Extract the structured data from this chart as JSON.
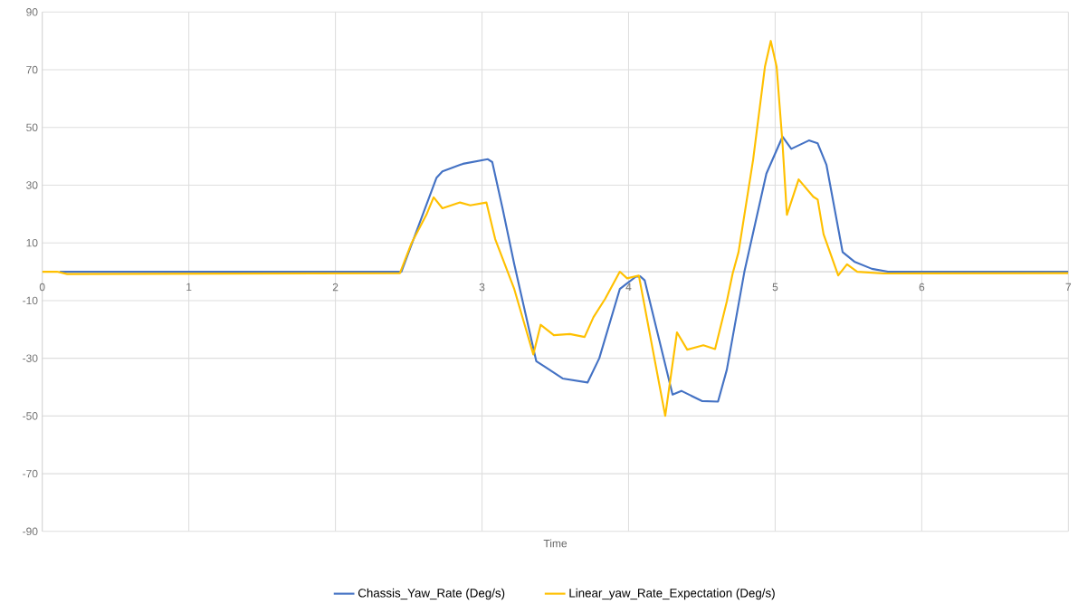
{
  "chart_data": {
    "type": "line",
    "xlabel": "Time",
    "xlim": [
      0,
      7
    ],
    "ylim": [
      -90,
      90
    ],
    "xticks": [
      0,
      1,
      2,
      3,
      4,
      5,
      6,
      7
    ],
    "yticks": [
      -90,
      -70,
      -50,
      -30,
      -10,
      10,
      30,
      50,
      70,
      90
    ],
    "grid": true,
    "legend": "bottom",
    "marker": "none",
    "line_style": "solid",
    "series": [
      {
        "name": "Chassis_Yaw_Rate (Deg/s)",
        "color": "#4472c4",
        "x": [
          0.12,
          2.45,
          2.69,
          2.73,
          2.87,
          3.04,
          3.07,
          3.14,
          3.22,
          3.37,
          3.43,
          3.55,
          3.72,
          3.8,
          3.94,
          3.99,
          4.05,
          4.08,
          4.11,
          4.3,
          4.36,
          4.5,
          4.61,
          4.67,
          4.79,
          4.94,
          5.05,
          5.11,
          5.23,
          5.29,
          5.35,
          5.46,
          5.54,
          5.66,
          5.77,
          7
        ],
        "values": [
          0,
          0,
          32.6,
          34.8,
          37.4,
          39,
          38,
          22,
          2.6,
          -31,
          -33,
          -37,
          -38.4,
          -30,
          -6,
          -4,
          -1.7,
          -1.6,
          -3,
          -42.6,
          -41.3,
          -44.8,
          -45,
          -34,
          0,
          34,
          46.8,
          42.6,
          45.5,
          44.5,
          37,
          6.8,
          3.5,
          1,
          0,
          0
        ]
      },
      {
        "name": "Linear_yaw_Rate_Expectation (Deg/s)",
        "color": "#ffc000",
        "x": [
          0,
          0.1,
          0.17,
          2.44,
          2.52,
          2.62,
          2.67,
          2.73,
          2.85,
          2.92,
          3.03,
          3.09,
          3.22,
          3.35,
          3.4,
          3.49,
          3.6,
          3.7,
          3.76,
          3.84,
          3.94,
          3.99,
          4.07,
          4.25,
          4.33,
          4.4,
          4.51,
          4.59,
          4.67,
          4.71,
          4.75,
          4.85,
          4.93,
          4.97,
          5.01,
          5.05,
          5.08,
          5.16,
          5.26,
          5.29,
          5.33,
          5.43,
          5.49,
          5.56,
          5.74,
          7
        ],
        "values": [
          0,
          0,
          -0.8,
          -0.5,
          10,
          19.7,
          25.8,
          22,
          24,
          23,
          24,
          11.3,
          -6,
          -28.7,
          -18.4,
          -22,
          -21.6,
          -22.6,
          -15.8,
          -9.4,
          0,
          -2.3,
          -1.3,
          -50,
          -21,
          -27,
          -25.5,
          -26.8,
          -10.3,
          -0.6,
          6.8,
          39,
          71,
          80,
          71,
          44.5,
          19.7,
          32,
          26,
          25,
          13,
          -1.3,
          2.6,
          0,
          -0.6,
          -0.5
        ]
      }
    ]
  }
}
